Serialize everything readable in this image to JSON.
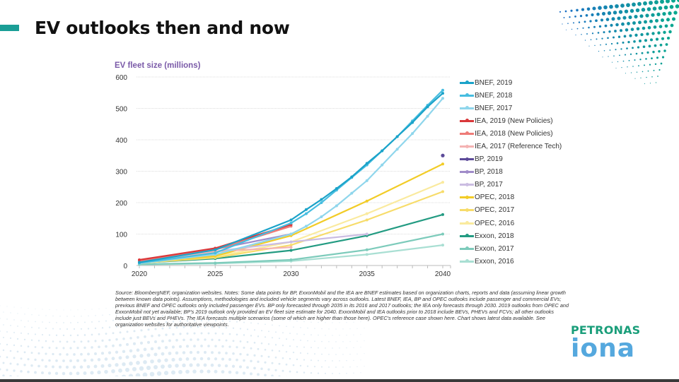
{
  "slide": {
    "title": "EV outlooks then and now",
    "accent_color": "#1a9e96",
    "logo": {
      "top": "PETRONAS",
      "bottom": "iona"
    }
  },
  "chart_data": {
    "type": "line",
    "title": "",
    "ylabel": "EV fleet size (millions)",
    "xlabel": "",
    "xlim": [
      2020,
      2040
    ],
    "ylim": [
      0,
      600
    ],
    "x_ticks": [
      "2020",
      "2025",
      "2030",
      "2035",
      "2040"
    ],
    "y_ticks": [
      "0",
      "100",
      "200",
      "300",
      "400",
      "500",
      "600"
    ],
    "grid": "horizontal",
    "legend_position": "right",
    "series": [
      {
        "name": "BNEF, 2019",
        "color": "#1ba3c9",
        "x": [
          2020,
          2025,
          2030,
          2031,
          2032,
          2033,
          2034,
          2035,
          2036,
          2037,
          2038,
          2039,
          2040
        ],
        "values": [
          10,
          50,
          145,
          178,
          210,
          245,
          282,
          325,
          365,
          410,
          455,
          505,
          548
        ]
      },
      {
        "name": "BNEF, 2018",
        "color": "#46bde0",
        "x": [
          2020,
          2025,
          2030,
          2031,
          2032,
          2033,
          2034,
          2035,
          2036,
          2037,
          2038,
          2039,
          2040
        ],
        "values": [
          8,
          40,
          135,
          165,
          200,
          240,
          280,
          320,
          365,
          410,
          460,
          510,
          558
        ]
      },
      {
        "name": "BNEF, 2017",
        "color": "#8fd6ec",
        "x": [
          2020,
          2025,
          2030,
          2031,
          2032,
          2033,
          2034,
          2035,
          2036,
          2037,
          2038,
          2039,
          2040
        ],
        "values": [
          7,
          35,
          100,
          125,
          155,
          190,
          230,
          270,
          320,
          370,
          420,
          475,
          532
        ]
      },
      {
        "name": "IEA, 2019 (New Policies)",
        "color": "#d9383a",
        "x": [
          2020,
          2025,
          2030
        ],
        "values": [
          18,
          55,
          130
        ]
      },
      {
        "name": "IEA, 2018 (New Policies)",
        "color": "#ee7c78",
        "x": [
          2020,
          2025,
          2030
        ],
        "values": [
          14,
          50,
          125
        ]
      },
      {
        "name": "IEA, 2017 (Reference Tech)",
        "color": "#f4b3b3",
        "x": [
          2020,
          2025,
          2030
        ],
        "values": [
          12,
          45,
          58
        ]
      },
      {
        "name": "BP, 2019",
        "color": "#5c4a99",
        "x": [
          2040
        ],
        "values": [
          350
        ]
      },
      {
        "name": "BP, 2018",
        "color": "#a08cc9",
        "x": [
          2020,
          2025,
          2030
        ],
        "values": [
          12,
          52,
          100
        ]
      },
      {
        "name": "BP, 2017",
        "color": "#cbbde2",
        "x": [
          2020,
          2025,
          2030,
          2035
        ],
        "values": [
          10,
          45,
          75,
          100
        ]
      },
      {
        "name": "OPEC, 2018",
        "color": "#f2cc27",
        "x": [
          2020,
          2025,
          2030,
          2035,
          2040
        ],
        "values": [
          9,
          30,
          95,
          205,
          323
        ]
      },
      {
        "name": "OPEC, 2017",
        "color": "#f7dc6a",
        "x": [
          2020,
          2025,
          2030,
          2035,
          2040
        ],
        "values": [
          8,
          25,
          65,
          145,
          235
        ]
      },
      {
        "name": "OPEC, 2016",
        "color": "#faea9e",
        "x": [
          2020,
          2025,
          2030,
          2035,
          2040
        ],
        "values": [
          7,
          28,
          75,
          165,
          265
        ]
      },
      {
        "name": "Exxon, 2018",
        "color": "#239b82",
        "x": [
          2020,
          2025,
          2030,
          2035,
          2040
        ],
        "values": [
          8,
          22,
          48,
          95,
          162
        ]
      },
      {
        "name": "Exxon, 2017",
        "color": "#7dcbbb",
        "x": [
          2020,
          2025,
          2030,
          2035,
          2040
        ],
        "values": [
          4,
          8,
          18,
          50,
          100
        ]
      },
      {
        "name": "Exxon, 2016",
        "color": "#a9dfd3",
        "x": [
          2020,
          2025,
          2030,
          2035,
          2040
        ],
        "values": [
          3,
          6,
          14,
          35,
          65
        ]
      }
    ],
    "notes": "Source: BloombergNEF, organization websites. Notes: Some data points for BP, ExxonMobil and the IEA are BNEF estimates based on organization charts, reports and data (assuming linear growth between known data points). Assumptions, methodologies and included vehicle segments vary across outlooks. Latest BNEF, IEA, BP and OPEC outlooks include passenger and commercial EVs; previous BNEF and OPEC outlooks only included passenger EVs. BP only forecasted through 2035 in its 2016 and 2017 outlooks; the IEA only forecasts through 2030. 2019 outlooks from OPEC and ExxonMobil not yet available; BP's 2019 outlook only provided an EV fleet size estimate for 2040. ExxonMobil and IEA outlooks prior to 2018 include BEVs, PHEVs and FCVs; all other outlooks include just BEVs and PHEVs. The IEA forecasts multiple scenarios (some of which are higher than those here). OPEC's reference case shown here. Chart shows latest data available. See organization websites for authoritative viewpoints."
  }
}
